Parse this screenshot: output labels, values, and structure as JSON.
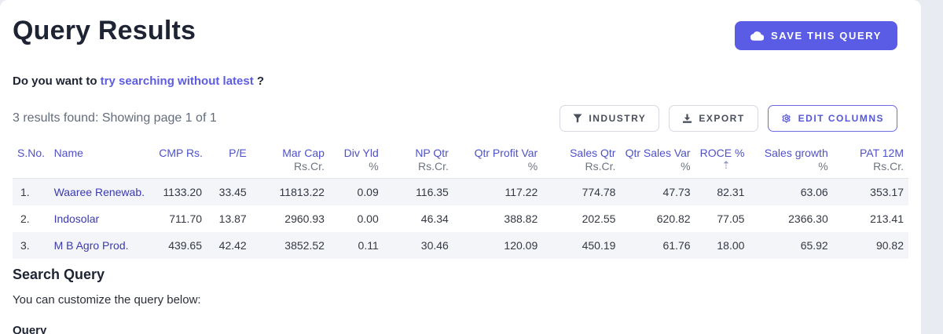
{
  "page": {
    "title": "Query Results",
    "save_button_label": "SAVE THIS QUERY",
    "suggestion": {
      "prefix": "Do you want to ",
      "link": "try searching without latest",
      "suffix": " ?"
    },
    "results_summary": "3 results found: Showing page 1 of 1",
    "toolbar": {
      "industry_label": "INDUSTRY",
      "export_label": "EXPORT",
      "edit_columns_label": "EDIT COLUMNS"
    }
  },
  "colors": {
    "accent_purple": "#5b5ce6",
    "header_link_purple": "#4f51c8",
    "company_link_indigo": "#3a3aad",
    "row_stripe": "#f4f5f9"
  },
  "icons": {
    "cloud": "cloud-icon",
    "filter": "filter-icon",
    "download": "download-icon",
    "gear": "gear-icon",
    "sort_ascending_glyph": "⇡"
  },
  "table": {
    "sort_icon_glyph": "⇡",
    "columns": [
      {
        "key": "sno",
        "label": "S.No.",
        "unit": "",
        "align": "left"
      },
      {
        "key": "name",
        "label": "Name",
        "unit": "",
        "align": "left"
      },
      {
        "key": "cmp_rs",
        "label": "CMP Rs.",
        "unit": "",
        "align": "right"
      },
      {
        "key": "pe",
        "label": "P/E",
        "unit": "",
        "align": "right"
      },
      {
        "key": "mar_cap",
        "label": "Mar Cap",
        "unit": "Rs.Cr.",
        "align": "right"
      },
      {
        "key": "div_yld",
        "label": "Div Yld",
        "unit": "%",
        "align": "right"
      },
      {
        "key": "np_qtr",
        "label": "NP Qtr",
        "unit": "Rs.Cr.",
        "align": "right"
      },
      {
        "key": "qtr_profit_var",
        "label": "Qtr Profit Var",
        "unit": "%",
        "align": "right"
      },
      {
        "key": "sales_qtr",
        "label": "Sales Qtr",
        "unit": "Rs.Cr.",
        "align": "right"
      },
      {
        "key": "qtr_sales_var",
        "label": "Qtr Sales Var",
        "unit": "%",
        "align": "right"
      },
      {
        "key": "roce",
        "label": "ROCE %",
        "unit": "",
        "align": "right",
        "sorted": true
      },
      {
        "key": "sales_growth",
        "label": "Sales growth",
        "unit": "%",
        "align": "right"
      },
      {
        "key": "pat_12m",
        "label": "PAT 12M",
        "unit": "Rs.Cr.",
        "align": "right"
      }
    ],
    "rows": [
      {
        "cells": [
          "1.",
          "Waaree Renewab.",
          "1133.20",
          "33.45",
          "11813.22",
          "0.09",
          "116.35",
          "117.22",
          "774.78",
          "47.73",
          "82.31",
          "63.06",
          "353.17"
        ]
      },
      {
        "cells": [
          "2.",
          "Indosolar",
          "711.70",
          "13.87",
          "2960.93",
          "0.00",
          "46.34",
          "388.82",
          "202.55",
          "620.82",
          "77.05",
          "2366.30",
          "213.41"
        ]
      },
      {
        "cells": [
          "3.",
          "M B Agro Prod.",
          "439.65",
          "42.42",
          "3852.52",
          "0.11",
          "30.46",
          "120.09",
          "450.19",
          "61.76",
          "18.00",
          "65.92",
          "90.82"
        ]
      }
    ]
  },
  "footer": {
    "heading": "Search Query",
    "subtext": "You can customize the query below:",
    "query_label": "Query"
  }
}
